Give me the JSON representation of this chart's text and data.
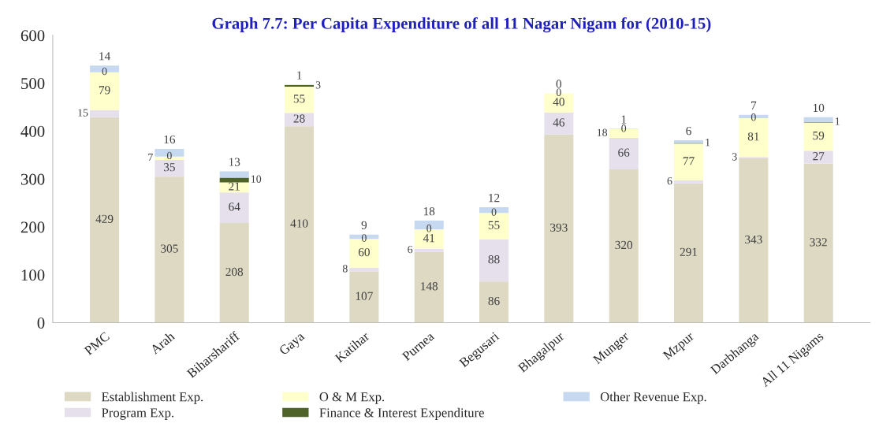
{
  "chart_data": {
    "type": "bar",
    "title": "Graph 7.7: Per Capita Expenditure of all 11 Nagar Nigam for (2010-15)",
    "categories": [
      "PMC",
      "Arah",
      "Biharshariff",
      "Gaya",
      "Katihar",
      "Purnea",
      "Begusari",
      "Bhagalpur",
      "Munger",
      "Mzpur",
      "Darbhanga",
      "All 11 Nigams"
    ],
    "stacked": true,
    "data_labels": true,
    "legend": "bottom",
    "grid": false,
    "ylim": [
      0,
      600
    ],
    "yticks": [
      0,
      100,
      200,
      300,
      400,
      500,
      600
    ],
    "series": [
      {
        "name": "Establishment Exp.",
        "color": "#ddd9c3",
        "values": [
          429,
          305,
          208,
          410,
          107,
          148,
          86,
          393,
          320,
          291,
          343,
          332
        ]
      },
      {
        "name": "Program Exp.",
        "color": "#e5e0ec",
        "values": [
          15,
          35,
          64,
          28,
          8,
          6,
          88,
          46,
          66,
          6,
          3,
          27
        ]
      },
      {
        "name": "O & M Exp.",
        "color": "#ffffcc",
        "values": [
          79,
          7,
          21,
          55,
          60,
          41,
          55,
          40,
          18,
          77,
          81,
          59
        ]
      },
      {
        "name": "Finance & Interest Expenditure",
        "color": "#4f6228",
        "values": [
          0,
          0,
          10,
          3,
          0,
          0,
          0,
          0,
          0,
          1,
          0,
          1
        ]
      },
      {
        "name": "Other Revenue Exp.",
        "color": "#c6d9f1",
        "values": [
          14,
          16,
          13,
          1,
          9,
          18,
          12,
          0,
          1,
          6,
          7,
          10
        ]
      }
    ]
  }
}
